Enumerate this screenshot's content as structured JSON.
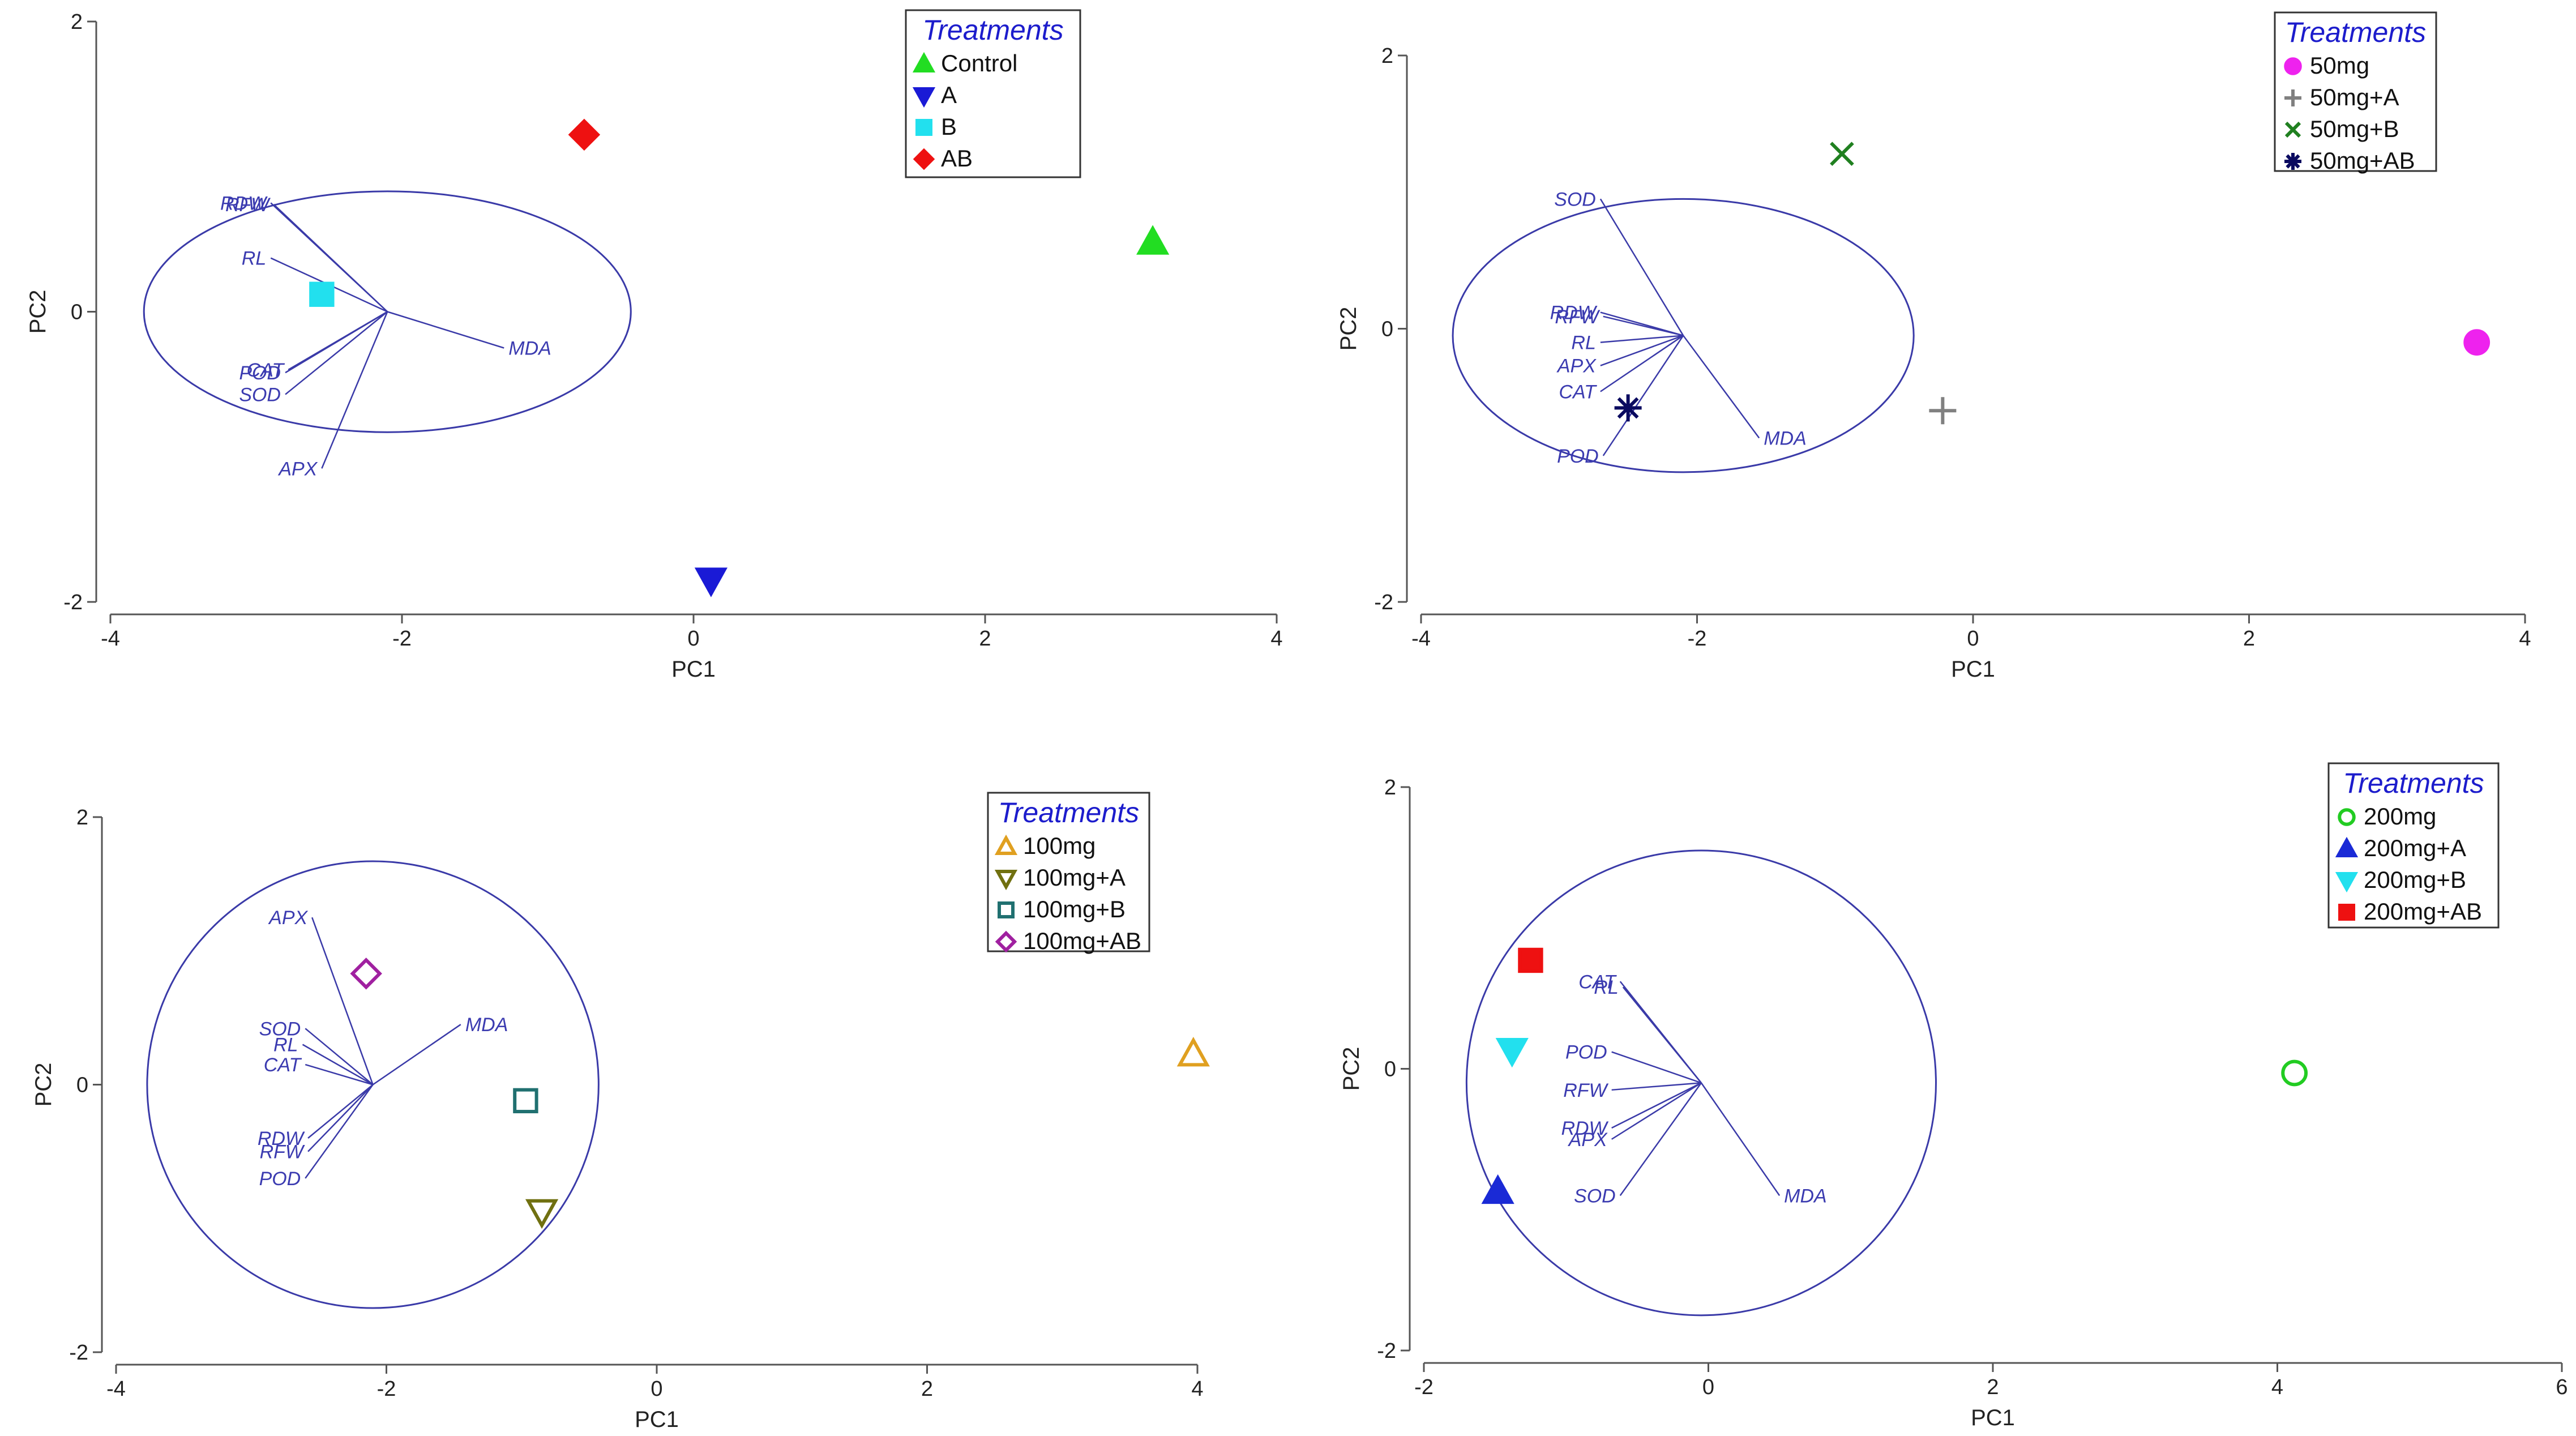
{
  "chart_data": [
    {
      "type": "scatter",
      "xlabel": "PC1",
      "ylabel": "PC2",
      "xlim": [
        -4,
        4
      ],
      "ylim": [
        -2,
        2
      ],
      "xticks": [
        -4,
        -2,
        0,
        2,
        4
      ],
      "yticks": [
        -2,
        0,
        2
      ],
      "circle": {
        "center": [
          -2.1,
          0
        ],
        "rx": 1.67,
        "ry": 0.83
      },
      "legend": {
        "title": "Treatments",
        "placement": "top-right"
      },
      "series": [
        {
          "name": "Control",
          "marker": "triangle-up",
          "filled": true,
          "color": "#22dd22",
          "x": 3.15,
          "y": 0.48
        },
        {
          "name": "A",
          "marker": "triangle-down",
          "filled": true,
          "color": "#1a1ad6",
          "x": 0.12,
          "y": -1.85
        },
        {
          "name": "B",
          "marker": "square",
          "filled": true,
          "color": "#22e0ee",
          "x": -2.55,
          "y": 0.12
        },
        {
          "name": "AB",
          "marker": "diamond",
          "filled": true,
          "color": "#ee1111",
          "x": -0.75,
          "y": 1.22
        }
      ],
      "vectors": [
        {
          "label": "RDW",
          "x": -2.9,
          "y": 0.75
        },
        {
          "label": "RFW",
          "x": -2.88,
          "y": 0.74
        },
        {
          "label": "RL",
          "x": -2.9,
          "y": 0.37
        },
        {
          "label": "POD",
          "x": -2.8,
          "y": -0.42
        },
        {
          "label": "CAT",
          "x": -2.78,
          "y": -0.4
        },
        {
          "label": "SOD",
          "x": -2.8,
          "y": -0.57
        },
        {
          "label": "APX",
          "x": -2.55,
          "y": -1.08
        },
        {
          "label": "MDA",
          "x": -1.3,
          "y": -0.25
        }
      ]
    },
    {
      "type": "scatter",
      "xlabel": "PC1",
      "ylabel": "PC2",
      "xlim": [
        -4,
        4
      ],
      "ylim": [
        -2,
        2
      ],
      "xticks": [
        -4,
        -2,
        0,
        2,
        4
      ],
      "yticks": [
        -2,
        0,
        2
      ],
      "circle": {
        "center": [
          -2.1,
          -0.05
        ],
        "rx": 1.67,
        "ry": 1.0
      },
      "legend": {
        "title": "Treatments",
        "placement": "top-right"
      },
      "series": [
        {
          "name": "50mg",
          "marker": "circle",
          "filled": true,
          "color": "#ee22ee",
          "x": 3.65,
          "y": -0.1
        },
        {
          "name": "50mg+A",
          "marker": "plus",
          "filled": false,
          "color": "#808080",
          "x": -0.22,
          "y": -0.6
        },
        {
          "name": "50mg+B",
          "marker": "cross",
          "filled": false,
          "color": "#208020",
          "x": -0.95,
          "y": 1.28
        },
        {
          "name": "50mg+AB",
          "marker": "asterisk",
          "filled": false,
          "color": "#0a0a60",
          "x": -2.5,
          "y": -0.58
        }
      ],
      "vectors": [
        {
          "label": "SOD",
          "x": -2.7,
          "y": 0.95
        },
        {
          "label": "RDW",
          "x": -2.7,
          "y": 0.12
        },
        {
          "label": "RFW",
          "x": -2.68,
          "y": 0.09
        },
        {
          "label": "RL",
          "x": -2.7,
          "y": -0.1
        },
        {
          "label": "APX",
          "x": -2.7,
          "y": -0.27
        },
        {
          "label": "CAT",
          "x": -2.7,
          "y": -0.46
        },
        {
          "label": "POD",
          "x": -2.68,
          "y": -0.93
        },
        {
          "label": "MDA",
          "x": -1.55,
          "y": -0.8
        }
      ]
    },
    {
      "type": "scatter",
      "xlabel": "PC1",
      "ylabel": "PC2",
      "xlim": [
        -4,
        4
      ],
      "ylim": [
        -2,
        2
      ],
      "xticks": [
        -4,
        -2,
        0,
        2,
        4
      ],
      "yticks": [
        -2,
        0,
        2
      ],
      "circle": {
        "center": [
          -2.1,
          0
        ],
        "rx": 1.67,
        "ry": 1.67
      },
      "legend": {
        "title": "Treatments",
        "placement": "top-right"
      },
      "series": [
        {
          "name": "100mg",
          "marker": "triangle-up",
          "filled": false,
          "color": "#e0a020",
          "x": 3.97,
          "y": 0.23
        },
        {
          "name": "100mg+A",
          "marker": "triangle-down",
          "filled": false,
          "color": "#707010",
          "x": -0.85,
          "y": -0.95
        },
        {
          "name": "100mg+B",
          "marker": "square",
          "filled": false,
          "color": "#207070",
          "x": -0.97,
          "y": -0.12
        },
        {
          "name": "100mg+AB",
          "marker": "diamond",
          "filled": false,
          "color": "#a020a0",
          "x": -2.15,
          "y": 0.83
        }
      ],
      "vectors": [
        {
          "label": "APX",
          "x": -2.55,
          "y": 1.25
        },
        {
          "label": "SOD",
          "x": -2.6,
          "y": 0.42
        },
        {
          "label": "RL",
          "x": -2.62,
          "y": 0.3
        },
        {
          "label": "CAT",
          "x": -2.6,
          "y": 0.15
        },
        {
          "label": "RDW",
          "x": -2.58,
          "y": -0.4
        },
        {
          "label": "RFW",
          "x": -2.58,
          "y": -0.5
        },
        {
          "label": "POD",
          "x": -2.6,
          "y": -0.7
        },
        {
          "label": "MDA",
          "x": -1.45,
          "y": 0.45
        }
      ]
    },
    {
      "type": "scatter",
      "xlabel": "PC1",
      "ylabel": "PC2",
      "xlim": [
        -2,
        6
      ],
      "ylim": [
        -2,
        2
      ],
      "xticks": [
        -2,
        0,
        2,
        4,
        6
      ],
      "yticks": [
        -2,
        0,
        2
      ],
      "circle": {
        "center": [
          -0.05,
          -0.1
        ],
        "rx": 1.65,
        "ry": 1.65
      },
      "legend": {
        "title": "Treatments",
        "placement": "top-right"
      },
      "series": [
        {
          "name": "200mg",
          "marker": "circle",
          "filled": false,
          "color": "#22cc22",
          "x": 4.12,
          "y": -0.03
        },
        {
          "name": "200mg+A",
          "marker": "triangle-up",
          "filled": true,
          "color": "#1a2ad6",
          "x": -1.48,
          "y": -0.87
        },
        {
          "name": "200mg+B",
          "marker": "triangle-down",
          "filled": true,
          "color": "#22e0ee",
          "x": -1.38,
          "y": 0.13
        },
        {
          "name": "200mg+AB",
          "marker": "square",
          "filled": true,
          "color": "#ee1111",
          "x": -1.25,
          "y": 0.77
        }
      ],
      "vectors": [
        {
          "label": "CAT",
          "x": -0.62,
          "y": 0.62
        },
        {
          "label": "RL",
          "x": -0.6,
          "y": 0.58
        },
        {
          "label": "POD",
          "x": -0.68,
          "y": 0.12
        },
        {
          "label": "RFW",
          "x": -0.68,
          "y": -0.15
        },
        {
          "label": "RDW",
          "x": -0.68,
          "y": -0.42
        },
        {
          "label": "APX",
          "x": -0.68,
          "y": -0.5
        },
        {
          "label": "SOD",
          "x": -0.62,
          "y": -0.9
        },
        {
          "label": "MDA",
          "x": 0.5,
          "y": -0.9
        }
      ]
    }
  ]
}
